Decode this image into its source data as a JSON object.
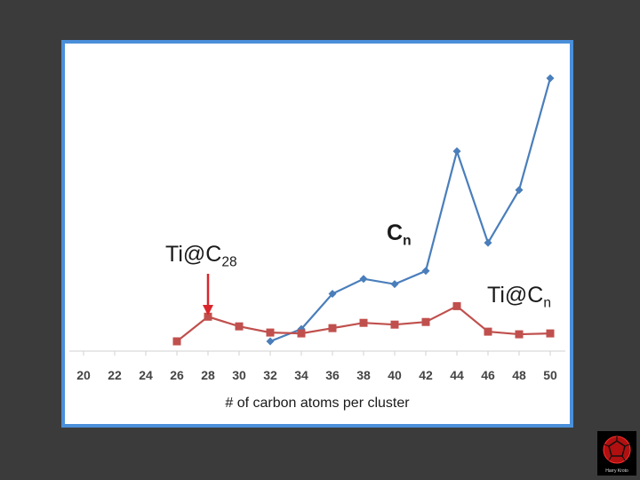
{
  "chart_data": {
    "type": "line",
    "x": [
      20,
      22,
      24,
      26,
      28,
      30,
      32,
      34,
      36,
      38,
      40,
      42,
      44,
      46,
      48,
      50
    ],
    "xlabel": "# of carbon atoms per cluster",
    "ylabel": "",
    "grid": false,
    "legend": "none",
    "series": [
      {
        "name": "Cn",
        "color": "#4a7ebb",
        "marker": "diamond",
        "values": [
          null,
          null,
          null,
          null,
          null,
          null,
          0,
          14,
          54,
          71,
          65,
          80,
          216,
          112,
          172,
          299
        ]
      },
      {
        "name": "Ti@Cn",
        "color": "#c0504d",
        "marker": "square",
        "values": [
          null,
          null,
          null,
          0,
          28,
          17,
          10,
          9,
          15,
          21,
          19,
          22,
          40,
          11,
          8,
          9
        ]
      }
    ],
    "annotations": [
      {
        "text": "Ti@C",
        "sub": "28",
        "points_to_x": 28,
        "arrow_color": "#d9262c"
      },
      {
        "text": "C",
        "sub": "n"
      },
      {
        "text": "Ti@C",
        "sub": "n"
      }
    ]
  },
  "logo": {
    "caption": "Harry Kroto",
    "icon": "fullerene-icon"
  }
}
